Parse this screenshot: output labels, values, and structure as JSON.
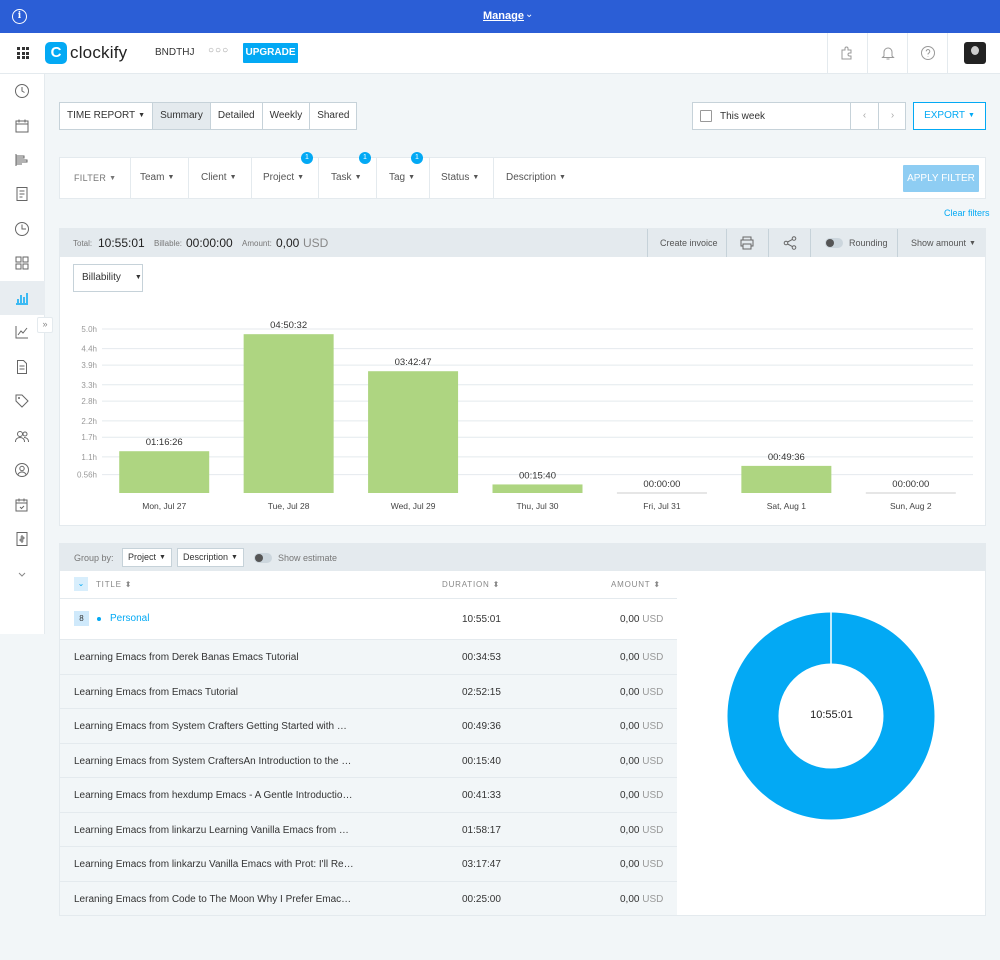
{
  "banner": {
    "manage_label": "Manage",
    "chevron": "chevron-down-icon"
  },
  "header": {
    "logo_text": "clockify",
    "workspace": "BNDTHJ",
    "more": "○○○",
    "upgrade_label": "UPGRADE"
  },
  "toolbar": {
    "tabs": [
      {
        "label": "TIME REPORT",
        "has_caret": true
      },
      {
        "label": "Summary",
        "active": true
      },
      {
        "label": "Detailed"
      },
      {
        "label": "Weekly"
      },
      {
        "label": "Shared"
      }
    ],
    "date_range": "This week",
    "export_label": "EXPORT"
  },
  "filters": {
    "items": [
      {
        "label": "FILTER",
        "badge": ""
      },
      {
        "label": "Team",
        "badge": ""
      },
      {
        "label": "Client",
        "badge": ""
      },
      {
        "label": "Project",
        "badge": "1"
      },
      {
        "label": "Task",
        "badge": "1"
      },
      {
        "label": "Tag",
        "badge": "1"
      },
      {
        "label": "Status",
        "badge": ""
      },
      {
        "label": "Description",
        "badge": ""
      }
    ],
    "apply_label": "APPLY FILTER",
    "clear_label": "Clear filters"
  },
  "totals": {
    "total_label": "Total:",
    "total_value": "10:55:01",
    "billable_label": "Billable:",
    "billable_value": "00:00:00",
    "amount_label": "Amount:",
    "amount_value": "0,00",
    "amount_currency": "USD",
    "create_invoice": "Create invoice",
    "rounding": "Rounding",
    "show_amount": "Show amount"
  },
  "chart_controls": {
    "billability_label": "Billability"
  },
  "chart_data": {
    "type": "bar",
    "categories": [
      "Mon, Jul 27",
      "Tue, Jul 28",
      "Wed, Jul 29",
      "Thu, Jul 30",
      "Fri, Jul 31",
      "Sat, Aug 1",
      "Sun, Aug 2"
    ],
    "values": [
      1.274,
      4.842,
      3.713,
      0.261,
      0,
      0.827,
      0
    ],
    "data_labels": [
      "01:16:26",
      "04:50:32",
      "03:42:47",
      "00:15:40",
      "00:00:00",
      "00:49:36",
      "00:00:00"
    ],
    "y_tick_labels": [
      "0.56h",
      "1.1h",
      "1.7h",
      "2.2h",
      "2.8h",
      "3.3h",
      "3.9h",
      "4.4h",
      "5.0h"
    ],
    "y_ticks": [
      0.56,
      1.1,
      1.7,
      2.2,
      2.8,
      3.3,
      3.9,
      4.4,
      5.0
    ],
    "ylim": [
      0,
      5.0
    ],
    "bar_color": "#aed581",
    "grid": true
  },
  "summary": {
    "group_by_label": "Group by:",
    "group_by_1": "Project",
    "group_by_2": "Description",
    "show_estimate": "Show estimate",
    "columns": {
      "title": "TITLE",
      "duration": "DURATION",
      "amount": "AMOUNT"
    },
    "group": {
      "count": "8",
      "name": "Personal",
      "duration": "10:55:01",
      "amount": "0,00",
      "currency": "USD"
    },
    "rows": [
      {
        "title": "Learning Emacs from Derek Banas Emacs Tutorial",
        "duration": "00:34:53",
        "amount": "0,00",
        "currency": "USD"
      },
      {
        "title": "Learning Emacs from Emacs Tutorial",
        "duration": "02:52:15",
        "amount": "0,00",
        "currency": "USD"
      },
      {
        "title": "Learning Emacs from System Crafters Getting Started with …",
        "duration": "00:49:36",
        "amount": "0,00",
        "currency": "USD"
      },
      {
        "title": "Learning Emacs from System CraftersAn Introduction to the …",
        "duration": "00:15:40",
        "amount": "0,00",
        "currency": "USD"
      },
      {
        "title": "Learning Emacs from hexdump Emacs - A Gentle Introductio…",
        "duration": "00:41:33",
        "amount": "0,00",
        "currency": "USD"
      },
      {
        "title": "Learning Emacs from linkarzu Learning Vanilla Emacs from …",
        "duration": "01:58:17",
        "amount": "0,00",
        "currency": "USD"
      },
      {
        "title": "Learning Emacs from linkarzu Vanilla Emacs with Prot: I'll Re…",
        "duration": "03:17:47",
        "amount": "0,00",
        "currency": "USD"
      },
      {
        "title": "Leraning Emacs from Code to The Moon Why I Prefer Emac…",
        "duration": "00:25:00",
        "amount": "0,00",
        "currency": "USD"
      }
    ],
    "donut_label": "10:55:01",
    "donut_color": "#03a9f4"
  }
}
